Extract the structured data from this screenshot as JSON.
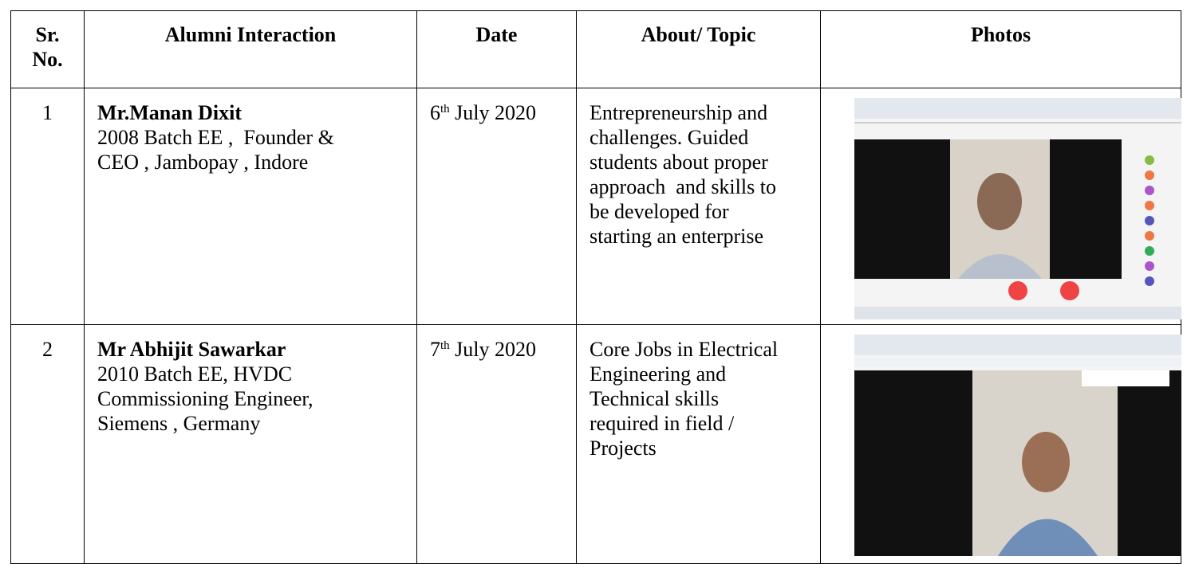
{
  "table": {
    "header": {
      "sr_no": [
        "Sr.",
        "No."
      ],
      "alumni_interaction": "Alumni Interaction",
      "date": "Date",
      "about_topic": "About/ Topic",
      "photos": "Photos"
    },
    "rows": [
      {
        "sr_no": "1",
        "name": "Mr.Manan Dixit",
        "details": [
          "2008 Batch EE ,  Founder &",
          "CEO , Jambopay , Indore"
        ],
        "date": {
          "day": "6",
          "suffix": "th",
          "month_year": "July 2020"
        },
        "topic": [
          "Entrepreneurship and",
          "challenges. Guided",
          "students about proper",
          "approach  and skills to",
          "be developed for",
          "starting an enterprise"
        ]
      },
      {
        "sr_no": "2",
        "name": "Mr Abhijit Sawarkar",
        "details": [
          "2010 Batch EE, HVDC",
          "Commissioning Engineer,",
          "Siemens , Germany"
        ],
        "date": {
          "day": "7",
          "suffix": "th",
          "month_year": "July 2020"
        },
        "topic": [
          "Core Jobs in Electrical",
          "Engineering and",
          "Technical skills",
          "required in field /",
          "Projects"
        ]
      }
    ]
  }
}
